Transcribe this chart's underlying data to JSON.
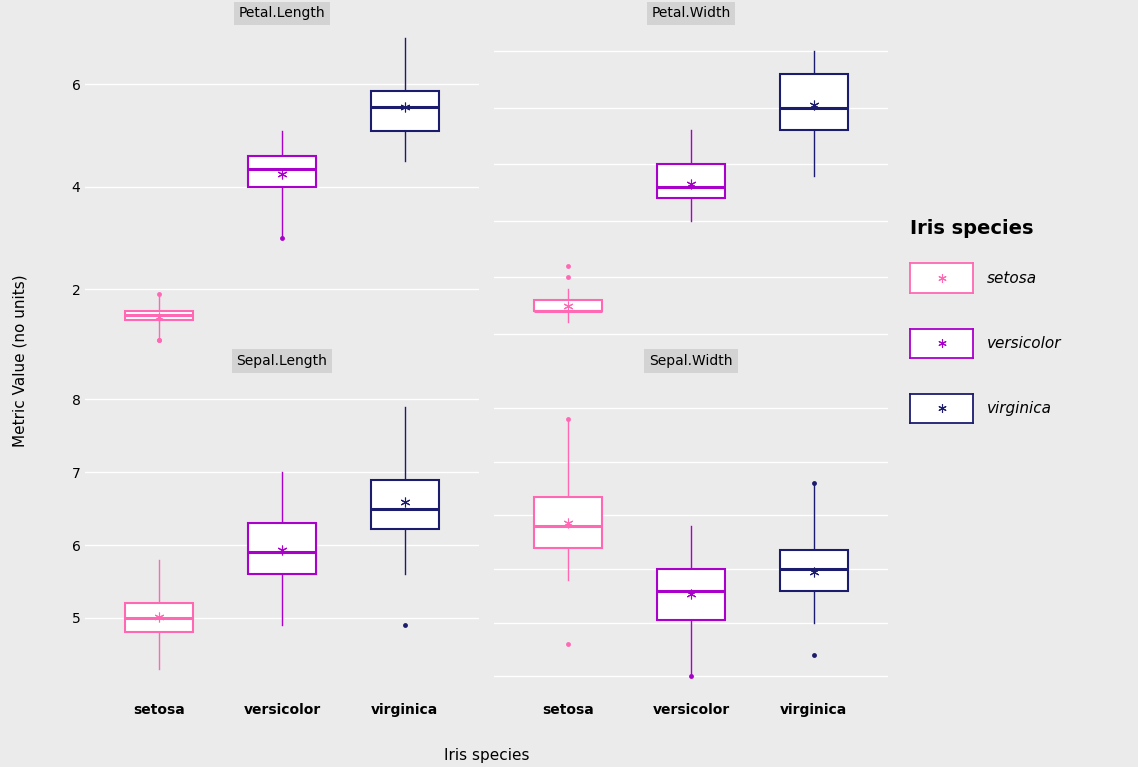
{
  "title": "Iris species",
  "ylabel": "Metric Value (no units)",
  "xlabel": "Iris species",
  "panels": [
    {
      "title": "Petal.Length",
      "row": 0,
      "col": 0,
      "species": [
        "setosa",
        "versicolor",
        "virginica"
      ],
      "stats": [
        {
          "q1": 1.4,
          "median": 1.5,
          "q3": 1.575,
          "mean": 1.462,
          "whislo": 1.0,
          "whishi": 1.9,
          "fliers": [
            1.9,
            1.0,
            1.0
          ]
        },
        {
          "q1": 4.0,
          "median": 4.35,
          "q3": 4.6,
          "mean": 4.26,
          "whislo": 3.0,
          "whishi": 5.1,
          "fliers": [
            3.0
          ]
        },
        {
          "q1": 5.1,
          "median": 5.55,
          "q3": 5.875,
          "mean": 5.552,
          "whislo": 4.5,
          "whishi": 6.9,
          "fliers": []
        }
      ],
      "ylim": [
        0.8,
        7.2
      ],
      "yticks": [
        2,
        4,
        6
      ]
    },
    {
      "title": "Petal.Width",
      "row": 0,
      "col": 1,
      "species": [
        "setosa",
        "versicolor",
        "virginica"
      ],
      "stats": [
        {
          "q1": 0.2,
          "median": 0.2,
          "q3": 0.3,
          "mean": 0.246,
          "whislo": 0.1,
          "whishi": 0.4,
          "fliers": [
            0.5,
            0.6
          ]
        },
        {
          "q1": 1.2,
          "median": 1.3,
          "q3": 1.5,
          "mean": 1.326,
          "whislo": 1.0,
          "whishi": 1.8,
          "fliers": []
        },
        {
          "q1": 1.8,
          "median": 2.0,
          "q3": 2.3,
          "mean": 2.026,
          "whislo": 1.4,
          "whishi": 2.5,
          "fliers": []
        }
      ],
      "ylim": [
        -0.15,
        2.75
      ],
      "yticks": [
        0.0,
        0.5,
        1.0,
        1.5,
        2.0,
        2.5
      ]
    },
    {
      "title": "Sepal.Length",
      "row": 1,
      "col": 0,
      "species": [
        "setosa",
        "versicolor",
        "virginica"
      ],
      "stats": [
        {
          "q1": 4.8,
          "median": 5.0,
          "q3": 5.2,
          "mean": 5.006,
          "whislo": 4.3,
          "whishi": 5.8,
          "fliers": []
        },
        {
          "q1": 5.6,
          "median": 5.9,
          "q3": 6.3,
          "mean": 5.936,
          "whislo": 4.9,
          "whishi": 7.0,
          "fliers": []
        },
        {
          "q1": 6.225,
          "median": 6.5,
          "q3": 6.9,
          "mean": 6.588,
          "whislo": 5.6,
          "whishi": 7.9,
          "fliers": [
            4.9
          ]
        }
      ],
      "ylim": [
        3.9,
        8.4
      ],
      "yticks": [
        5,
        6,
        7,
        8
      ]
    },
    {
      "title": "Sepal.Width",
      "row": 1,
      "col": 1,
      "species": [
        "setosa",
        "versicolor",
        "virginica"
      ],
      "stats": [
        {
          "q1": 3.2,
          "median": 3.4,
          "q3": 3.675,
          "mean": 3.428,
          "whislo": 2.9,
          "whishi": 4.4,
          "fliers": [
            4.4,
            2.3
          ]
        },
        {
          "q1": 2.525,
          "median": 2.8,
          "q3": 3.0,
          "mean": 2.77,
          "whislo": 2.0,
          "whishi": 3.4,
          "fliers": [
            2.0
          ]
        },
        {
          "q1": 2.8,
          "median": 3.0,
          "q3": 3.175,
          "mean": 2.974,
          "whislo": 2.5,
          "whishi": 3.8,
          "fliers": [
            2.2,
            3.8
          ]
        }
      ],
      "ylim": [
        1.8,
        4.85
      ],
      "yticks": [
        2.0,
        2.5,
        3.0,
        3.5,
        4.0,
        4.5
      ]
    }
  ],
  "colors": {
    "setosa": "#FF69B4",
    "versicolor": "#AA00CC",
    "virginica": "#1C1C6E"
  },
  "median_colors": {
    "setosa": "#FF69B4",
    "versicolor": "#AA00CC",
    "virginica": "#1C1C6E"
  },
  "background_color": "#EBEBEB",
  "grid_color": "#FFFFFF",
  "strip_bg": "#D3D3D3",
  "box_width": 0.55,
  "title_fontsize": 10,
  "axis_label_fontsize": 11,
  "tick_fontsize": 10,
  "legend_title_fontsize": 14,
  "legend_fontsize": 11
}
